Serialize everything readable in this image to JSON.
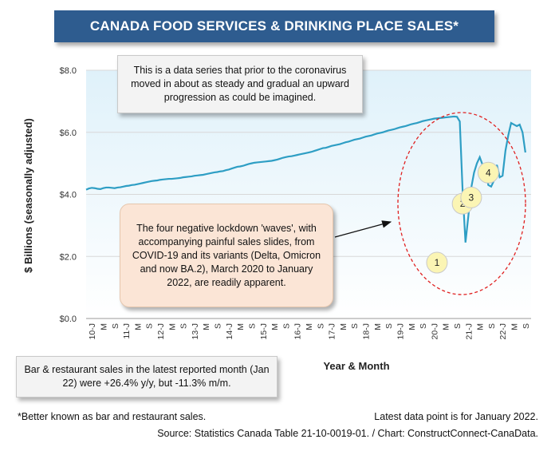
{
  "title": "CANADA FOOD SERVICES & DRINKING PLACE SALES*",
  "notes": {
    "top": "This is a data series that prior to the coronavirus moved in about as steady and gradual an upward progression as could be imagined.",
    "middle": "The four negative lockdown 'waves', with accompanying painful sales slides, from COVID-19 and its variants (Delta, Omicron and now BA.2), March 2020 to January 2022, are readily apparent.",
    "bottom": "Bar & restaurant sales in the latest reported month (Jan 22) were +26.4% y/y, but -11.3% m/m."
  },
  "footer": {
    "footnote": "*Better known as bar and restaurant sales.",
    "latest": "Latest data point is for January 2022.",
    "source": "Source: Statistics Canada Table 21-10-0019-01. / Chart: ConstructConnect-CanaData."
  },
  "colors": {
    "title_bg": "#2e5c8f",
    "line": "#2e9ec4",
    "ellipse": "#e02020",
    "marker_fill": "#fbf5b4",
    "plot_top": "#e4f3fa"
  },
  "chart_data": {
    "type": "line",
    "ylabel": "$ Billions (seasonally adjusted)",
    "xlabel": "Year & Month",
    "ylim": [
      0,
      8
    ],
    "y_ticks": [
      "$0.0",
      "$2.0",
      "$4.0",
      "$6.0",
      "$8.0"
    ],
    "y_tick_values": [
      0,
      2,
      4,
      6,
      8
    ],
    "x_tick_labels": [
      "10-J",
      "M",
      "S",
      "11-J",
      "M",
      "S",
      "12-J",
      "M",
      "S",
      "13-J",
      "M",
      "S",
      "14-J",
      "M",
      "S",
      "15-J",
      "M",
      "S",
      "16-J",
      "M",
      "S",
      "17-J",
      "M",
      "S",
      "18-J",
      "M",
      "S",
      "19-J",
      "M",
      "S",
      "20-J",
      "M",
      "S",
      "21-J",
      "M",
      "S",
      "22-J",
      "M",
      "S"
    ],
    "x_start": "2010-01",
    "x_end": "2022-09",
    "series": [
      {
        "values": [
          4.15,
          4.19,
          4.21,
          4.2,
          4.18,
          4.17,
          4.2,
          4.22,
          4.22,
          4.21,
          4.2,
          4.22,
          4.23,
          4.25,
          4.27,
          4.28,
          4.3,
          4.31,
          4.33,
          4.35,
          4.37,
          4.39,
          4.41,
          4.43,
          4.44,
          4.45,
          4.47,
          4.48,
          4.49,
          4.5,
          4.5,
          4.51,
          4.52,
          4.53,
          4.55,
          4.56,
          4.57,
          4.58,
          4.6,
          4.61,
          4.62,
          4.63,
          4.65,
          4.67,
          4.69,
          4.71,
          4.72,
          4.74,
          4.75,
          4.78,
          4.8,
          4.83,
          4.86,
          4.89,
          4.9,
          4.92,
          4.95,
          4.98,
          5.0,
          5.02,
          5.03,
          5.04,
          5.05,
          5.06,
          5.07,
          5.08,
          5.1,
          5.12,
          5.15,
          5.18,
          5.2,
          5.22,
          5.23,
          5.25,
          5.27,
          5.29,
          5.31,
          5.33,
          5.35,
          5.37,
          5.4,
          5.43,
          5.46,
          5.49,
          5.5,
          5.53,
          5.56,
          5.58,
          5.6,
          5.62,
          5.65,
          5.68,
          5.7,
          5.73,
          5.76,
          5.78,
          5.8,
          5.83,
          5.86,
          5.88,
          5.9,
          5.93,
          5.96,
          5.98,
          6.0,
          6.03,
          6.06,
          6.08,
          6.1,
          6.13,
          6.16,
          6.18,
          6.2,
          6.23,
          6.26,
          6.28,
          6.3,
          6.33,
          6.36,
          6.38,
          6.4,
          6.42,
          6.44,
          6.45,
          6.46,
          6.47,
          6.48,
          6.49,
          6.5,
          6.51,
          6.5,
          6.35,
          4.1,
          2.45,
          3.3,
          4.2,
          4.7,
          5.0,
          5.2,
          4.95,
          4.85,
          4.3,
          4.25,
          4.45,
          4.95,
          4.55,
          4.6,
          5.4,
          5.9,
          6.3,
          6.25,
          6.2,
          6.25,
          6.0,
          5.35
        ]
      }
    ],
    "annotations": [
      {
        "label": "1",
        "x": "2020-04",
        "y": 1.8
      },
      {
        "label": "2",
        "x": "2021-01",
        "y": 3.7
      },
      {
        "label": "3",
        "x": "2021-04",
        "y": 3.9
      },
      {
        "label": "4",
        "x": "2021-10",
        "y": 4.7
      }
    ]
  }
}
